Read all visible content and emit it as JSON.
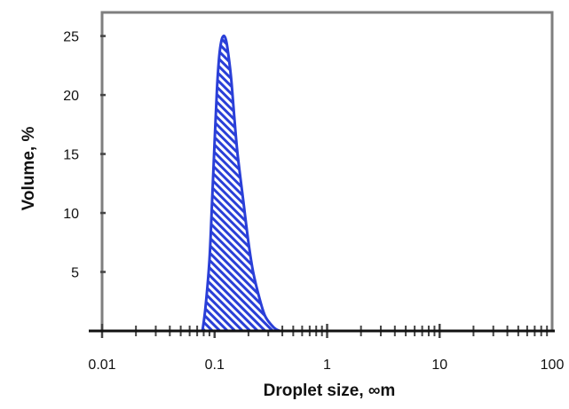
{
  "chart_data": {
    "type": "area",
    "title": "",
    "xlabel": "Droplet size, ∞m",
    "ylabel": "Volume, %",
    "x_scale": "log",
    "xlim": [
      0.01,
      100
    ],
    "ylim": [
      0,
      27
    ],
    "x_ticks": [
      0.01,
      0.1,
      1,
      10,
      100
    ],
    "x_tick_labels": [
      "0.01",
      "0.1",
      "1",
      "10",
      "100"
    ],
    "y_ticks": [
      5,
      10,
      15,
      20,
      25
    ],
    "y_tick_labels": [
      "5",
      "10",
      "15",
      "20",
      "25"
    ],
    "grid": false,
    "legend": "none",
    "series": [
      {
        "fill_pattern": "diagonal-hatch",
        "color": "#2a3fd8",
        "x": [
          0.078,
          0.083,
          0.09,
          0.095,
          0.1,
          0.105,
          0.11,
          0.115,
          0.12,
          0.125,
          0.13,
          0.14,
          0.15,
          0.16,
          0.18,
          0.2,
          0.22,
          0.25,
          0.28,
          0.32,
          0.35,
          0.38
        ],
        "y": [
          0,
          2,
          6,
          11,
          16,
          20.5,
          23.3,
          24.6,
          25,
          24.8,
          24,
          21.5,
          18,
          15,
          11,
          7.5,
          5,
          2.8,
          1.3,
          0.5,
          0.15,
          0
        ]
      }
    ]
  }
}
